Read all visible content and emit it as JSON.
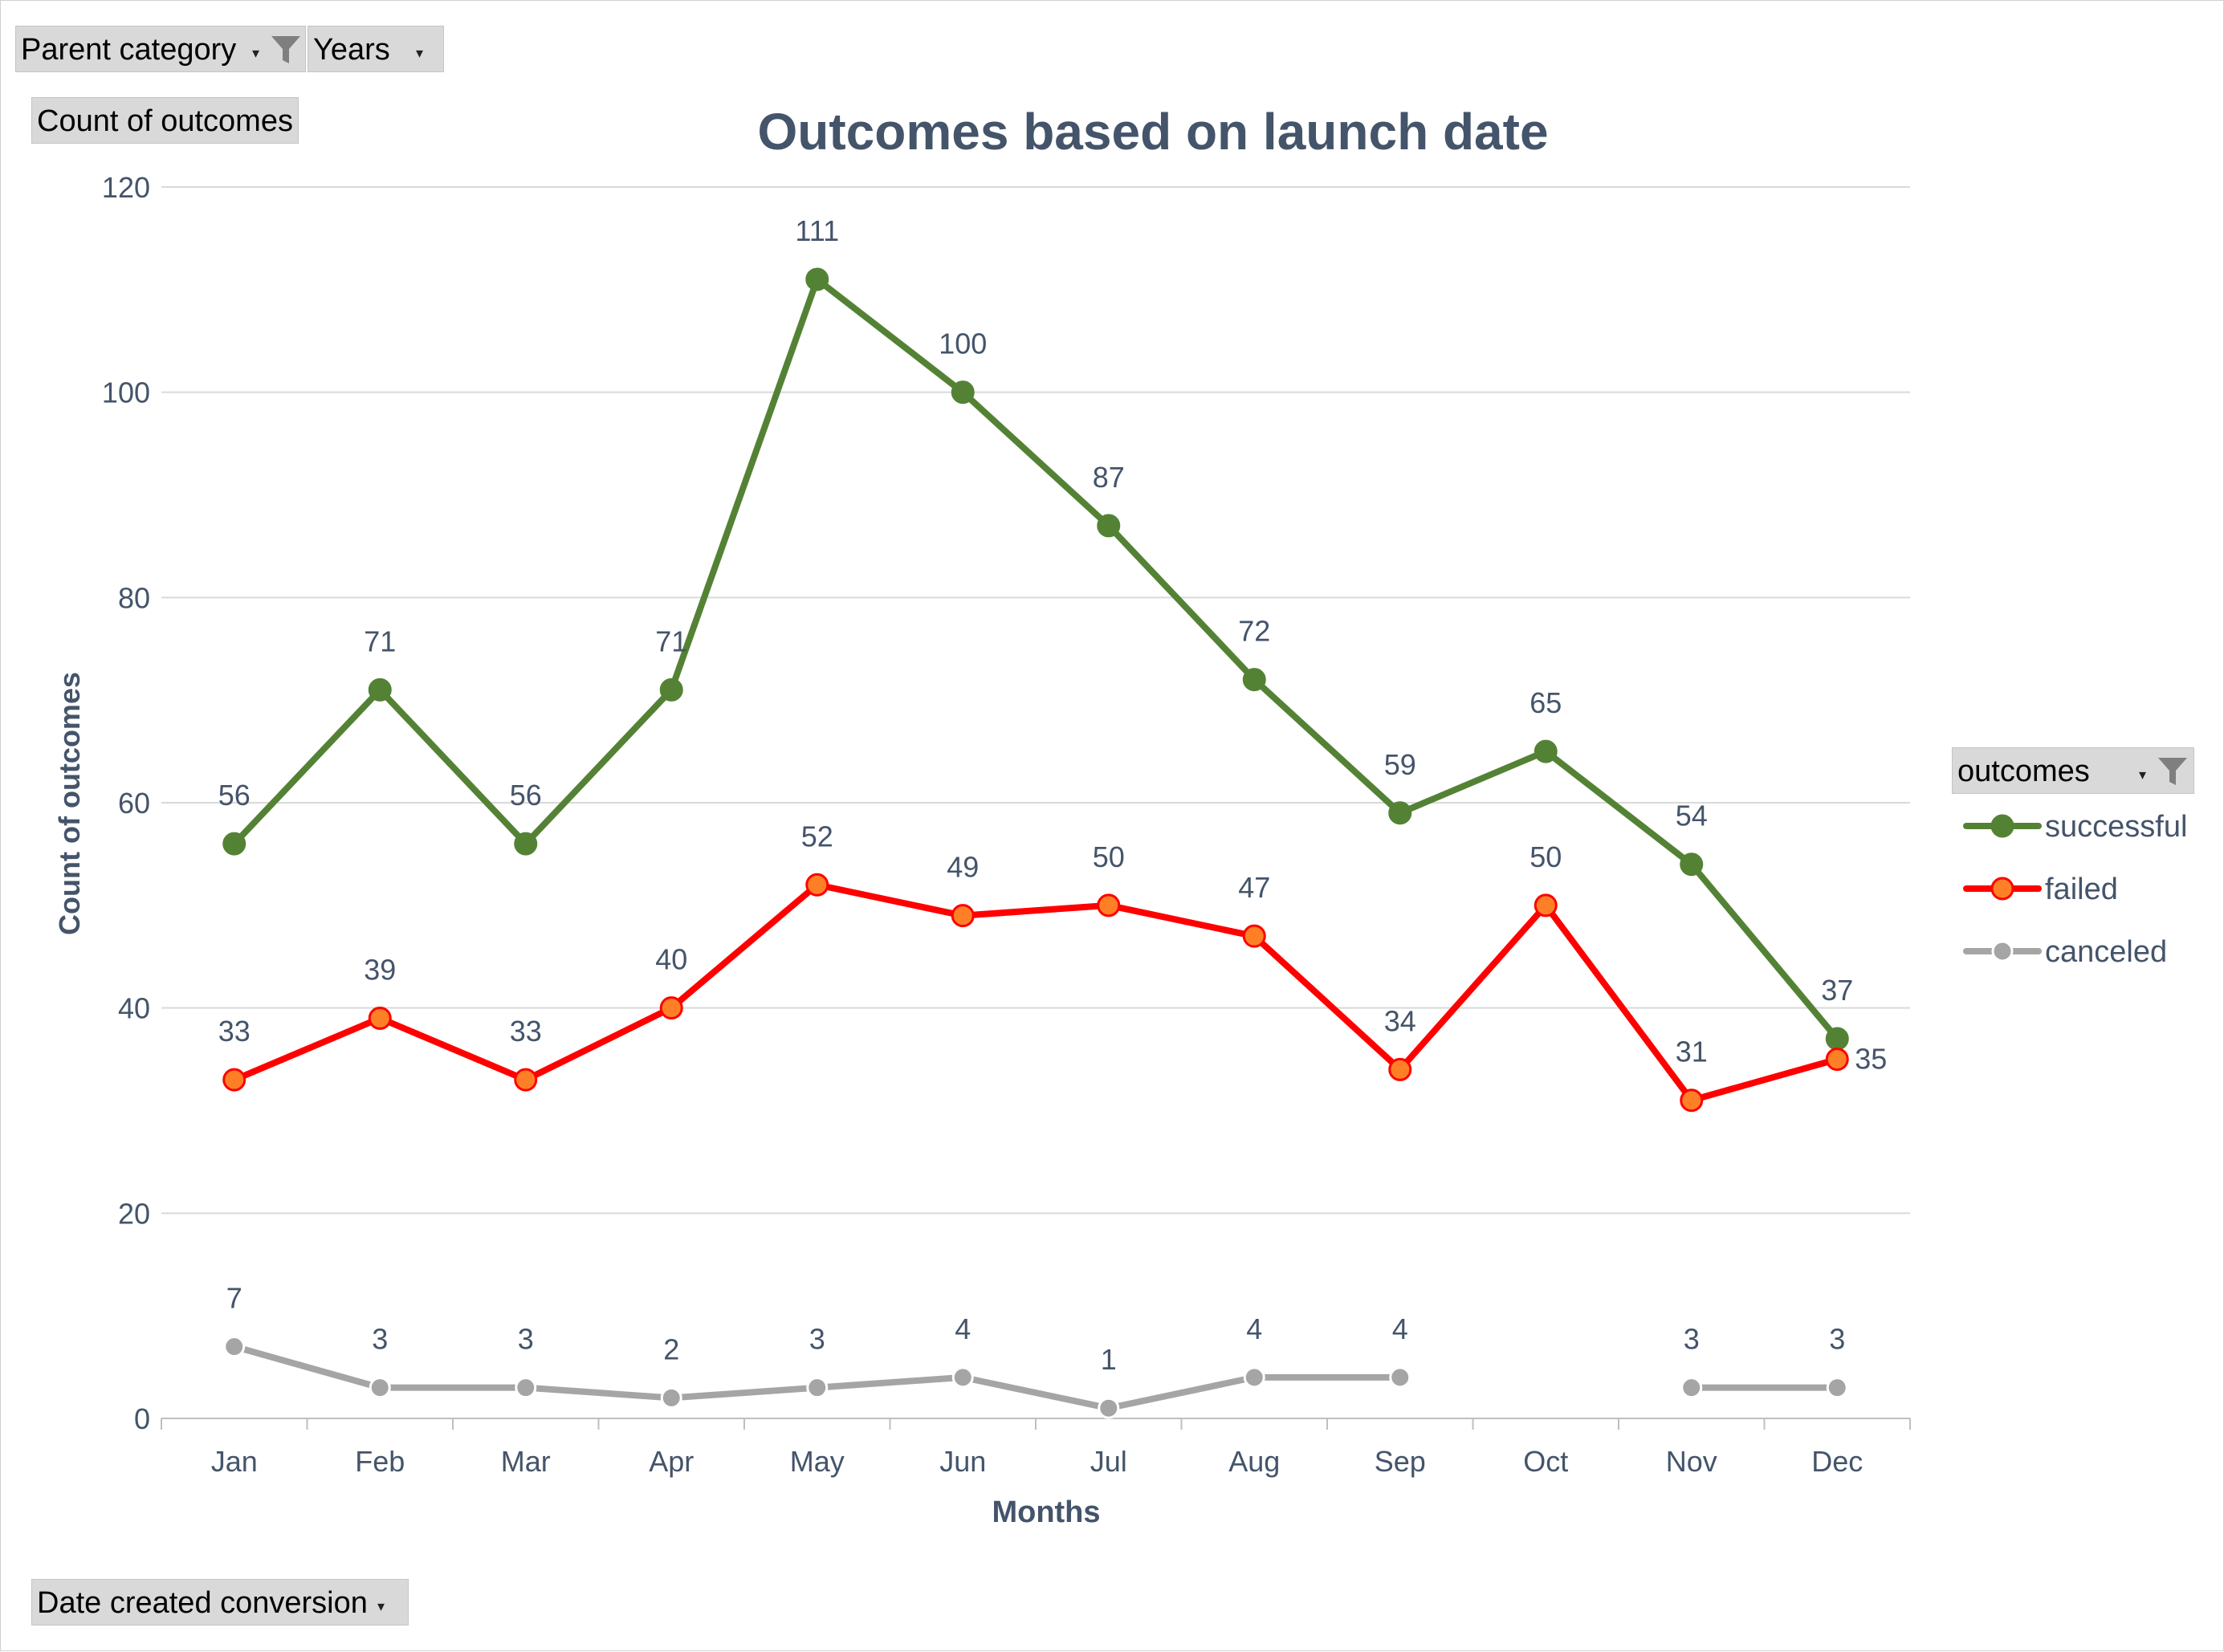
{
  "pivot_buttons": {
    "parent_category": "Parent category",
    "years": "Years",
    "count_of_outcomes": "Count of outcomes",
    "date_created_conversion": "Date created conversion",
    "outcomes": "outcomes"
  },
  "colors": {
    "successful": "#548235",
    "failed": "#ff0000",
    "failed_marker_fill": "#ff7f27",
    "canceled": "#a5a5a5",
    "text": "#44546a",
    "gridline": "#d9d9d9"
  },
  "chart_data": {
    "type": "line",
    "title": "Outcomes based on launch date",
    "xlabel": "Months",
    "ylabel": "Count of outcomes",
    "ylim": [
      0,
      120
    ],
    "yticks": [
      0,
      20,
      40,
      60,
      80,
      100,
      120
    ],
    "grid": true,
    "legend_position": "right",
    "categories": [
      "Jan",
      "Feb",
      "Mar",
      "Apr",
      "May",
      "Jun",
      "Jul",
      "Aug",
      "Sep",
      "Oct",
      "Nov",
      "Dec"
    ],
    "series": [
      {
        "name": "successful",
        "values": [
          56,
          71,
          56,
          71,
          111,
          100,
          87,
          72,
          59,
          65,
          54,
          37
        ]
      },
      {
        "name": "failed",
        "values": [
          33,
          39,
          33,
          40,
          52,
          49,
          50,
          47,
          34,
          50,
          31,
          35
        ]
      },
      {
        "name": "canceled",
        "values": [
          7,
          3,
          3,
          2,
          3,
          4,
          1,
          4,
          4,
          null,
          3,
          3
        ]
      }
    ]
  }
}
